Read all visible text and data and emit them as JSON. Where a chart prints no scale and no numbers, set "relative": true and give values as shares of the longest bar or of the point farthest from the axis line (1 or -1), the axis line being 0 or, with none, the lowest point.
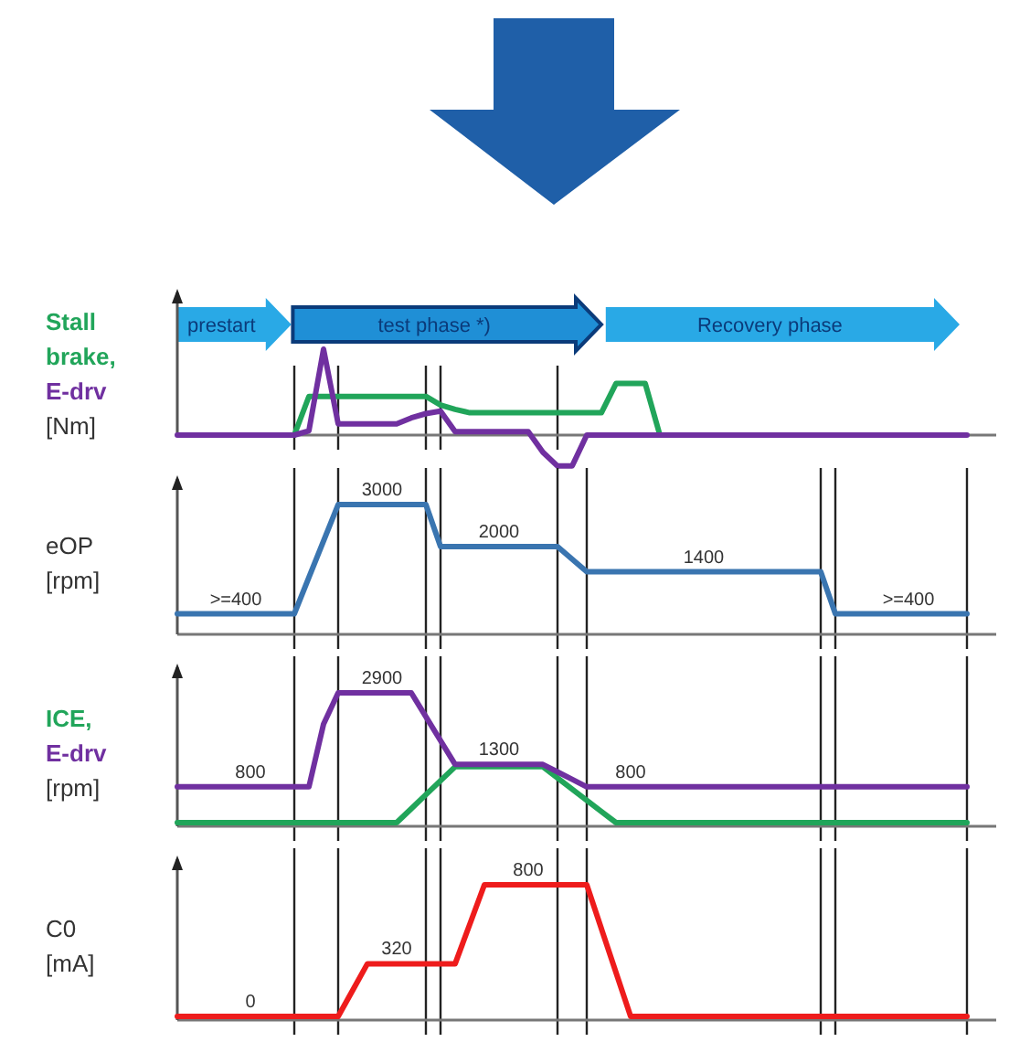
{
  "chart_data": [
    {
      "type": "line",
      "relative": true,
      "ylabel": "[Nm]",
      "annotations": [
        "prestart",
        "test phase *)",
        "Recovery phase"
      ],
      "categories": [
        null,
        null,
        null,
        null,
        null,
        null,
        null,
        null,
        null,
        null,
        null,
        null,
        null,
        null,
        null,
        null,
        null,
        null,
        null,
        null,
        null,
        null,
        null,
        null,
        null,
        null,
        null,
        null,
        null,
        null,
        null,
        null,
        null,
        null,
        null,
        null,
        null,
        null,
        null,
        null,
        null,
        null,
        null,
        null,
        null,
        null,
        null,
        null,
        null,
        null,
        null,
        null,
        null,
        null,
        null,
        null,
        null
      ],
      "series": [
        {
          "name": "Stall brake,",
          "color": "#21a55a",
          "values": [
            null,
            null,
            null,
            null,
            null,
            null,
            null,
            null,
            0,
            0.45,
            0.45,
            0.45,
            0.45,
            0.45,
            0.45,
            0.45,
            0.45,
            0.45,
            0.35,
            0.3,
            0.26,
            0.26,
            0.26,
            0.26,
            0.26,
            0.26,
            0.26,
            0.26,
            0.26,
            0.26,
            0.6,
            0.6,
            0.6,
            0,
            null,
            null,
            null,
            null,
            null,
            null,
            null,
            null,
            null,
            null,
            null,
            null,
            null,
            null,
            null,
            null,
            null,
            null,
            null,
            null,
            null,
            null,
            null
          ]
        },
        {
          "name": "E-drv",
          "color": "#7030a0",
          "values": [
            0,
            0,
            0,
            0,
            0,
            0,
            0,
            0,
            0,
            0.05,
            1,
            0.13,
            0.13,
            0.13,
            0.13,
            0.13,
            0.2,
            0.25,
            0.28,
            0.04,
            0.04,
            0.04,
            0.04,
            0.04,
            0.04,
            -0.2,
            -0.36,
            -0.36,
            0,
            0,
            0,
            0,
            0,
            0,
            0,
            0,
            0,
            0,
            0,
            0,
            0,
            0,
            0,
            0,
            0,
            0,
            0,
            0,
            0,
            0,
            0,
            0,
            0,
            0,
            0,
            null,
            null
          ]
        }
      ],
      "grid": "x"
    },
    {
      "type": "line",
      "ylabel": "eOP [rpm]",
      "categories": [
        null,
        null,
        null,
        null,
        null,
        null,
        null,
        null,
        null,
        null,
        null,
        null,
        null,
        null,
        null,
        null,
        null,
        null,
        null,
        null,
        null,
        null,
        null,
        null,
        null,
        null,
        null,
        null,
        null,
        null,
        null,
        null,
        null,
        null,
        null,
        null,
        null,
        null,
        null,
        null,
        null,
        null,
        null,
        null,
        null,
        null,
        null,
        null,
        null,
        null,
        null,
        null,
        null,
        null,
        null,
        null,
        null
      ],
      "series": [
        {
          "color": "#3a75b0",
          "values": [
            400,
            400,
            400,
            400,
            400,
            400,
            400,
            400,
            400,
            1267,
            2133,
            3000,
            3000,
            3000,
            3000,
            3000,
            3000,
            3000,
            2000,
            2000,
            2000,
            2000,
            2000,
            2000,
            2000,
            2000,
            2000,
            1700,
            1400,
            1400,
            1400,
            1400,
            1400,
            1400,
            1400,
            1400,
            1400,
            1400,
            1400,
            1400,
            1400,
            1400,
            1400,
            1400,
            1400,
            400,
            400,
            400,
            400,
            400,
            400,
            400,
            400,
            400,
            400,
            null,
            null
          ],
          "value_labels": [
            null,
            null,
            null,
            null,
            ">=400",
            null,
            null,
            null,
            null,
            null,
            null,
            null,
            null,
            null,
            "3000",
            null,
            null,
            null,
            null,
            null,
            null,
            null,
            "2000",
            null,
            null,
            null,
            null,
            null,
            null,
            null,
            null,
            null,
            null,
            null,
            null,
            null,
            "1400",
            null,
            null,
            null,
            null,
            null,
            null,
            null,
            null,
            null,
            null,
            null,
            null,
            null,
            ">=400",
            null,
            null,
            null,
            null,
            null,
            null
          ]
        }
      ],
      "grid": "x"
    },
    {
      "type": "line",
      "ylabel": "[rpm]",
      "categories": [
        null,
        null,
        null,
        null,
        null,
        null,
        null,
        null,
        null,
        null,
        null,
        null,
        null,
        null,
        null,
        null,
        null,
        null,
        null,
        null,
        null,
        null,
        null,
        null,
        null,
        null,
        null,
        null,
        null,
        null,
        null,
        null,
        null,
        null,
        null,
        null,
        null,
        null,
        null,
        null,
        null,
        null,
        null,
        null,
        null,
        null,
        null,
        null,
        null,
        null,
        null,
        null,
        null,
        null,
        null,
        null,
        null
      ],
      "series": [
        {
          "name": "ICE,",
          "color": "#21a55a",
          "values": [
            0,
            0,
            0,
            0,
            0,
            0,
            0,
            0,
            0,
            0,
            0,
            0,
            0,
            0,
            0,
            0,
            312,
            625,
            937,
            1250,
            1250,
            1250,
            1250,
            1250,
            1250,
            1250,
            1000,
            750,
            500,
            250,
            0,
            0,
            0,
            0,
            0,
            0,
            0,
            0,
            0,
            0,
            0,
            0,
            0,
            0,
            0,
            0,
            0,
            0,
            0,
            0,
            0,
            0,
            0,
            0,
            0,
            null,
            null
          ]
        },
        {
          "name": "E-drv",
          "color": "#7030a0",
          "values": [
            800,
            800,
            800,
            800,
            800,
            800,
            800,
            800,
            800,
            800,
            2200,
            2900,
            2900,
            2900,
            2900,
            2900,
            2900,
            2367,
            1833,
            1300,
            1300,
            1300,
            1300,
            1300,
            1300,
            1300,
            1133,
            967,
            800,
            800,
            800,
            800,
            800,
            800,
            800,
            800,
            800,
            800,
            800,
            800,
            800,
            800,
            800,
            800,
            800,
            800,
            800,
            800,
            800,
            800,
            800,
            800,
            800,
            800,
            800,
            null,
            null
          ],
          "value_labels": [
            null,
            null,
            null,
            null,
            null,
            "800",
            null,
            null,
            null,
            null,
            null,
            null,
            null,
            null,
            "2900",
            null,
            null,
            null,
            null,
            null,
            null,
            null,
            "1300",
            null,
            null,
            null,
            null,
            null,
            null,
            null,
            null,
            "800",
            null,
            null,
            null,
            null,
            null,
            null,
            null,
            null,
            null,
            null,
            null,
            null,
            null,
            null,
            null,
            null,
            null,
            null,
            null,
            null,
            null,
            null,
            null,
            null,
            null
          ]
        }
      ],
      "grid": "x"
    },
    {
      "type": "line",
      "ylabel": "C0 [mA]",
      "categories": [
        null,
        null,
        null,
        null,
        null,
        null,
        null,
        null,
        null,
        null,
        null,
        null,
        null,
        null,
        null,
        null,
        null,
        null,
        null,
        null,
        null,
        null,
        null,
        null,
        null,
        null,
        null,
        null,
        null,
        null,
        null,
        null,
        null,
        null,
        null,
        null,
        null,
        null,
        null,
        null,
        null,
        null,
        null,
        null,
        null,
        null,
        null,
        null,
        null,
        null,
        null,
        null,
        null,
        null,
        null,
        null,
        null
      ],
      "series": [
        {
          "color": "#ee1c1c",
          "values": [
            0,
            0,
            0,
            0,
            0,
            0,
            0,
            0,
            0,
            0,
            0,
            0,
            160,
            320,
            320,
            320,
            320,
            320,
            320,
            320,
            560,
            800,
            800,
            800,
            800,
            800,
            800,
            800,
            800,
            533,
            267,
            0,
            0,
            0,
            0,
            0,
            0,
            0,
            0,
            0,
            0,
            0,
            0,
            0,
            0,
            0,
            0,
            0,
            0,
            0,
            0,
            0,
            0,
            0,
            0,
            null,
            null
          ],
          "value_labels": [
            null,
            null,
            null,
            null,
            null,
            "0",
            null,
            null,
            null,
            null,
            null,
            null,
            null,
            null,
            null,
            "320",
            null,
            null,
            null,
            null,
            null,
            null,
            null,
            null,
            "800",
            null,
            null,
            null,
            null,
            null,
            null,
            null,
            null,
            null,
            null,
            null,
            null,
            null,
            null,
            null,
            null,
            null,
            null,
            null,
            null,
            null,
            null,
            null,
            null,
            null,
            null,
            null,
            null,
            null,
            null,
            null,
            null
          ]
        }
      ],
      "grid": "x"
    }
  ]
}
